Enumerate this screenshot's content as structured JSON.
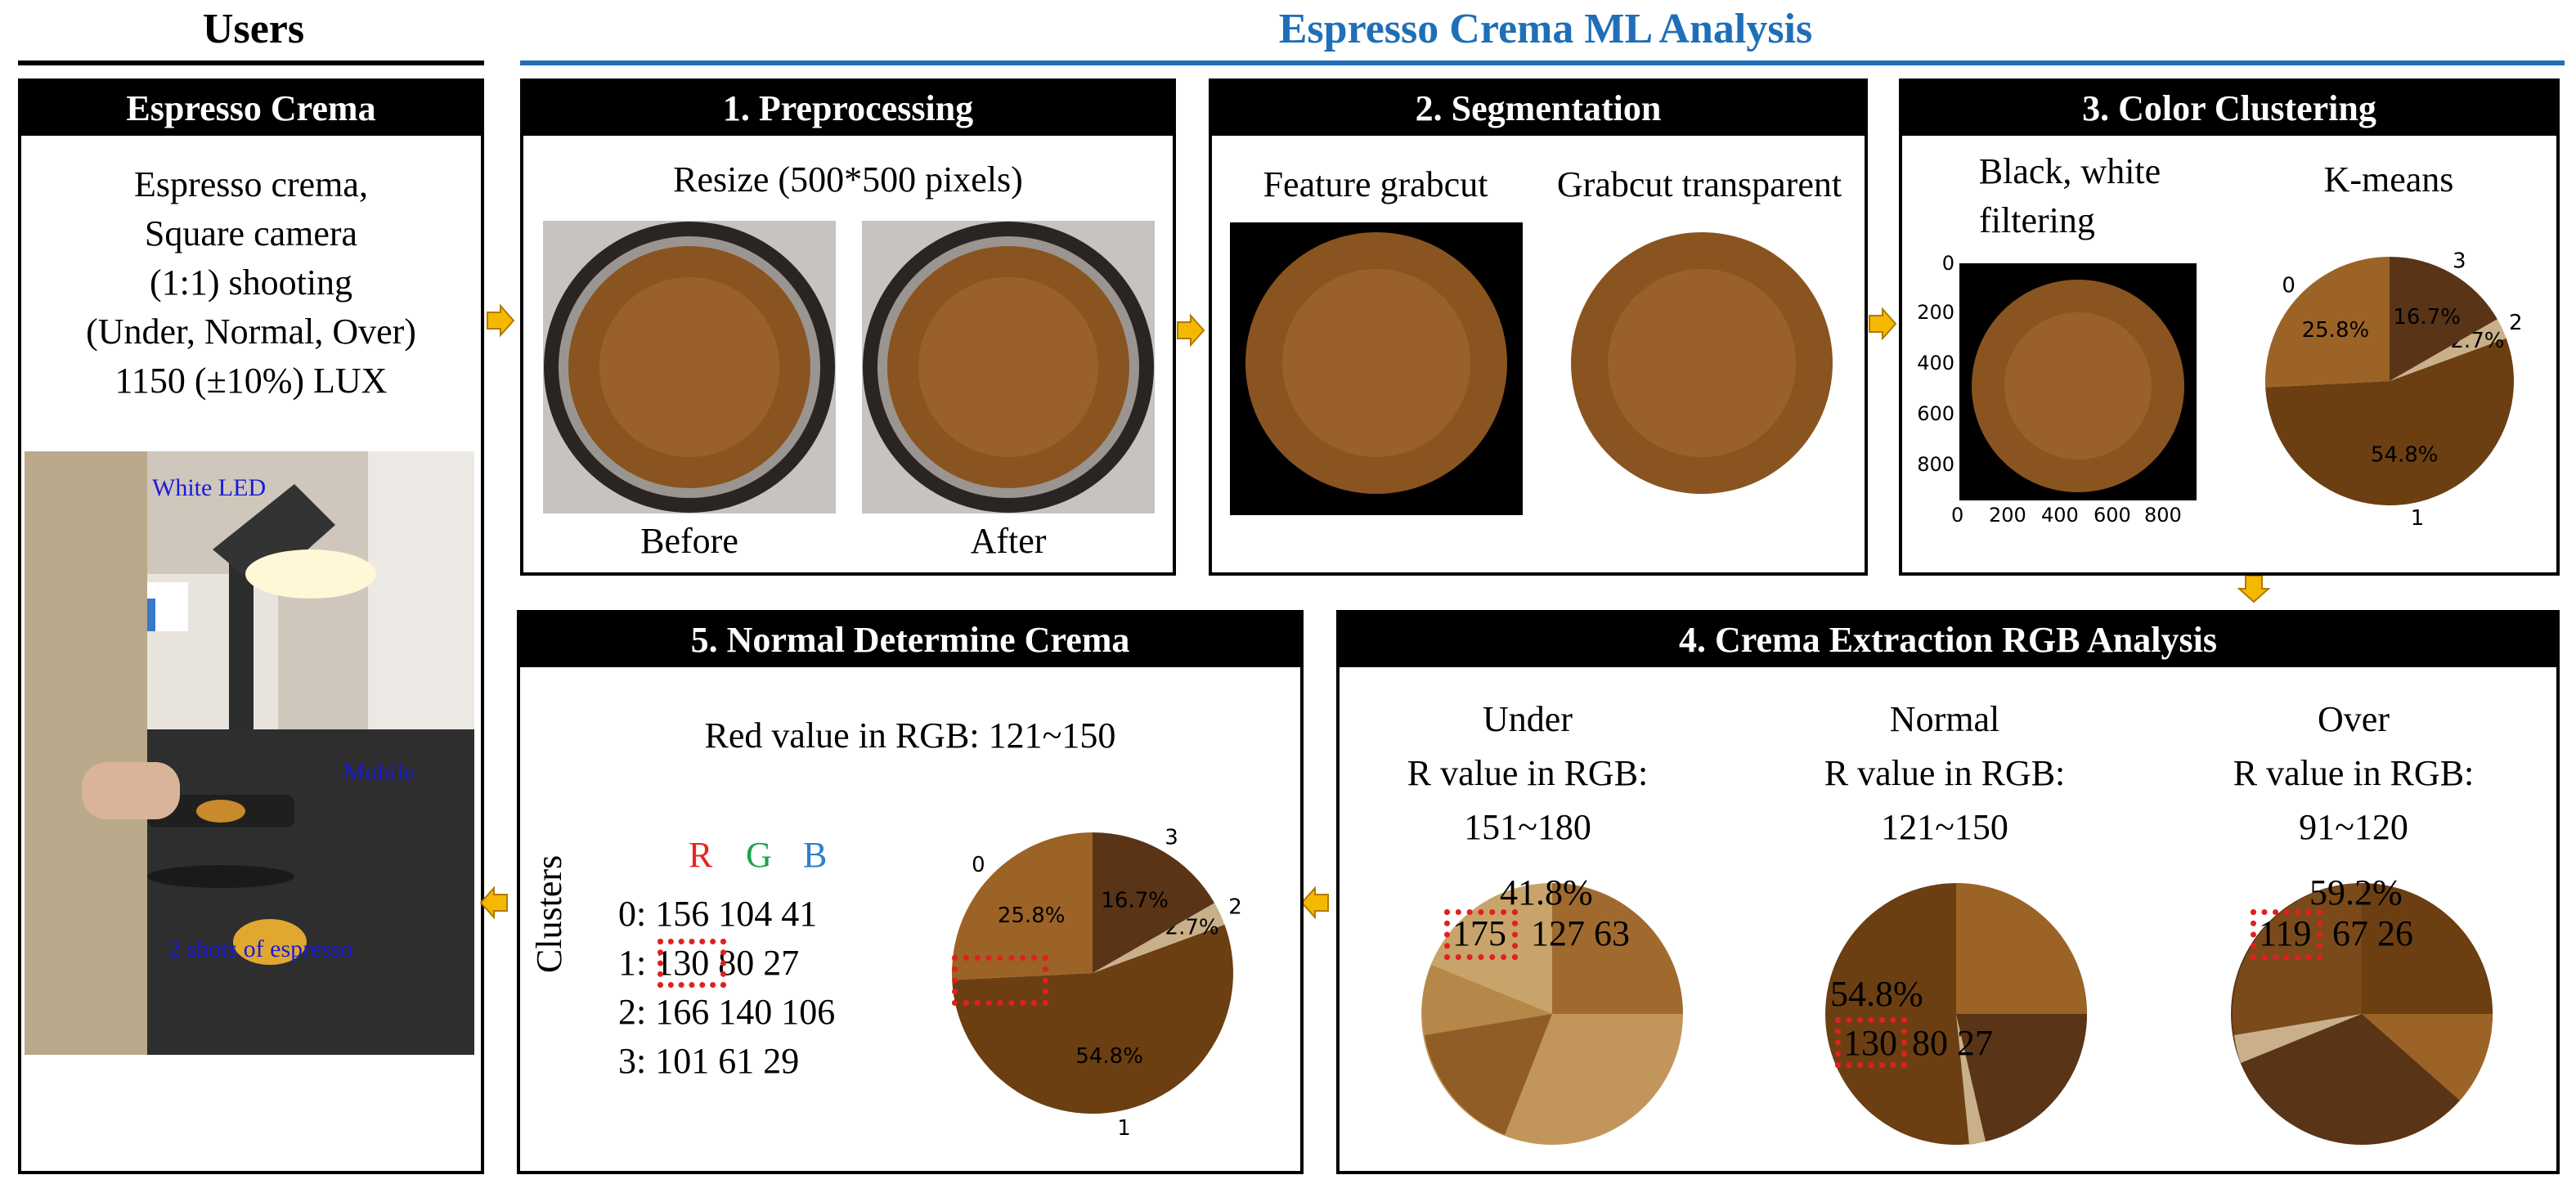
{
  "headers": {
    "users": "Users",
    "ml": "Espresso Crema ML Analysis"
  },
  "colors": {
    "rule_users": "#000000",
    "rule_ml": "#1f6fb8",
    "arrow": "#f5b800",
    "crema_dark": "#6b3f12",
    "crema_mid": "#9c6326",
    "crema_light": "#c89957",
    "crema_deep": "#5a3417",
    "red_box": "#e02020"
  },
  "users_panel": {
    "title": "Espresso Crema",
    "lines": [
      "Espresso crema,",
      "Square camera",
      "(1:1) shooting",
      "(Under, Normal, Over)",
      "1150 (±10%) LUX"
    ],
    "photo_labels": {
      "led": "White LED",
      "mobile": "Mobile",
      "shots": "2 shots of espresso"
    }
  },
  "preprocessing": {
    "title": "1. Preprocessing",
    "subtitle": "Resize (500*500 pixels)",
    "before": "Before",
    "after": "After"
  },
  "segmentation": {
    "title": "2. Segmentation",
    "left_label": "Feature grabcut",
    "right_label": "Grabcut transparent"
  },
  "clustering": {
    "title": "3. Color Clustering",
    "filter_label_line1": "Black, white",
    "filter_label_line2": "filtering",
    "kmeans_label": "K-means",
    "axis_ticks_y": [
      "0",
      "200",
      "400",
      "600",
      "800"
    ],
    "axis_ticks_x": [
      "0",
      "200",
      "400",
      "600",
      "800"
    ]
  },
  "rgb_analysis": {
    "title": "4. Crema Extraction RGB Analysis",
    "columns": [
      {
        "name": "Under",
        "line1": "R value in RGB:",
        "range": "151~180",
        "pct": "41.8%",
        "rgb_r": "175",
        "rgb_gb": "127 63"
      },
      {
        "name": "Normal",
        "line1": "R value in RGB:",
        "range": "121~150",
        "pct": "54.8%",
        "rgb_r": "130",
        "rgb_gb": "80 27"
      },
      {
        "name": "Over",
        "line1": "R value in RGB:",
        "range": "91~120",
        "pct": "59.2%",
        "rgb_r": "119",
        "rgb_gb": "67 26"
      }
    ]
  },
  "determine": {
    "title": "5. Normal Determine Crema",
    "red_value_line": "Red value in RGB:  121~150",
    "rgb_header": {
      "r": "R",
      "g": "G",
      "b": "B"
    },
    "rgb_header_colors": {
      "r": "#e8231f",
      "g": "#1aa34a",
      "b": "#2a7fd0"
    },
    "clusters_label": "Clusters",
    "clusters": [
      {
        "idx": "0:",
        "r": "156",
        "gb": "104 41"
      },
      {
        "idx": "1:",
        "r": "130",
        "gb": "80 27"
      },
      {
        "idx": "2:",
        "r": "166",
        "gb": "140 106"
      },
      {
        "idx": "3:",
        "r": "101",
        "gb": "61 29"
      }
    ]
  },
  "chart_data": {
    "type": "pie",
    "title": "K-means clusters",
    "categories": [
      "0",
      "1",
      "2",
      "3"
    ],
    "values": [
      25.8,
      54.8,
      2.7,
      16.7
    ],
    "labels": [
      "25.8%",
      "54.8%",
      "2.7%",
      "16.7%"
    ],
    "colors": [
      "#9c6326",
      "#6b3f12",
      "#c9b08a",
      "#5a3417"
    ]
  }
}
